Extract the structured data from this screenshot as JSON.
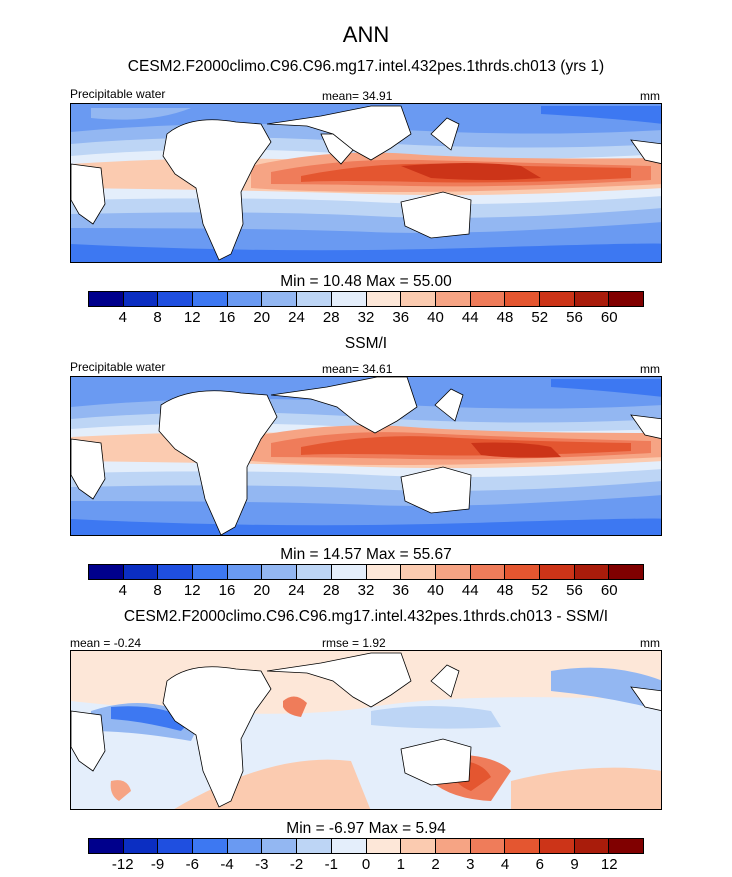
{
  "header": {
    "title": "ANN",
    "model_title": "CESM2.F2000climo.C96.C96.mg17.intel.432pes.1thrds.ch013 (yrs 1)",
    "obs_title": "SSM/I",
    "diff_title": "CESM2.F2000climo.C96.C96.mg17.intel.432pes.1thrds.ch013 - SSM/I"
  },
  "panel1": {
    "variable": "Precipitable water",
    "mean_text": "mean=  34.91",
    "units": "mm",
    "minmax": "Min =  10.48 Max =  55.00"
  },
  "panel2": {
    "variable": "Precipitable water",
    "mean_text": "mean=  34.61",
    "units": "mm",
    "minmax": "Min =  14.57 Max =  55.67"
  },
  "panel3": {
    "mean_text": "mean =  -0.24",
    "rmse_text": "rmse =   1.92",
    "units": "mm",
    "minmax": "Min =  -6.97 Max =   5.94"
  },
  "colorbar_abs": {
    "colors": [
      "#00008c",
      "#0b2ec2",
      "#1f4fe0",
      "#3d78f2",
      "#6a9af2",
      "#93b7f2",
      "#bdd5f5",
      "#e4eefb",
      "#fde7d8",
      "#fbcbb0",
      "#f6a484",
      "#ef7c5a",
      "#e45630",
      "#cc3418",
      "#a91c0b",
      "#800000"
    ],
    "labels": [
      "4",
      "8",
      "12",
      "16",
      "20",
      "24",
      "28",
      "32",
      "36",
      "40",
      "44",
      "48",
      "52",
      "56",
      "60"
    ]
  },
  "colorbar_diff": {
    "colors": [
      "#00008c",
      "#0b2ec2",
      "#1f4fe0",
      "#3d78f2",
      "#6a9af2",
      "#93b7f2",
      "#bdd5f5",
      "#e4eefb",
      "#fde7d8",
      "#fbcbb0",
      "#f6a484",
      "#ef7c5a",
      "#e45630",
      "#cc3418",
      "#a91c0b",
      "#800000"
    ],
    "labels": [
      "-12",
      "-9",
      "-6",
      "-4",
      "-3",
      "-2",
      "-1",
      "0",
      "1",
      "2",
      "3",
      "4",
      "6",
      "9",
      "12"
    ]
  },
  "chart_data": [
    {
      "type": "heatmap",
      "title": "CESM2.F2000climo.C96.C96.mg17.intel.432pes.1thrds.ch013 (yrs 1)",
      "variable": "Precipitable water",
      "units": "mm",
      "mean": 34.91,
      "min": 10.48,
      "max": 55.0,
      "contour_levels": [
        4,
        8,
        12,
        16,
        20,
        24,
        28,
        32,
        36,
        40,
        44,
        48,
        52,
        56,
        60
      ]
    },
    {
      "type": "heatmap",
      "title": "SSM/I",
      "variable": "Precipitable water",
      "units": "mm",
      "mean": 34.61,
      "min": 14.57,
      "max": 55.67,
      "contour_levels": [
        4,
        8,
        12,
        16,
        20,
        24,
        28,
        32,
        36,
        40,
        44,
        48,
        52,
        56,
        60
      ]
    },
    {
      "type": "heatmap",
      "title": "CESM2.F2000climo.C96.C96.mg17.intel.432pes.1thrds.ch013 - SSM/I",
      "units": "mm",
      "mean": -0.24,
      "rmse": 1.92,
      "min": -6.97,
      "max": 5.94,
      "contour_levels": [
        -12,
        -9,
        -6,
        -4,
        -3,
        -2,
        -1,
        0,
        1,
        2,
        3,
        4,
        6,
        9,
        12
      ]
    }
  ]
}
